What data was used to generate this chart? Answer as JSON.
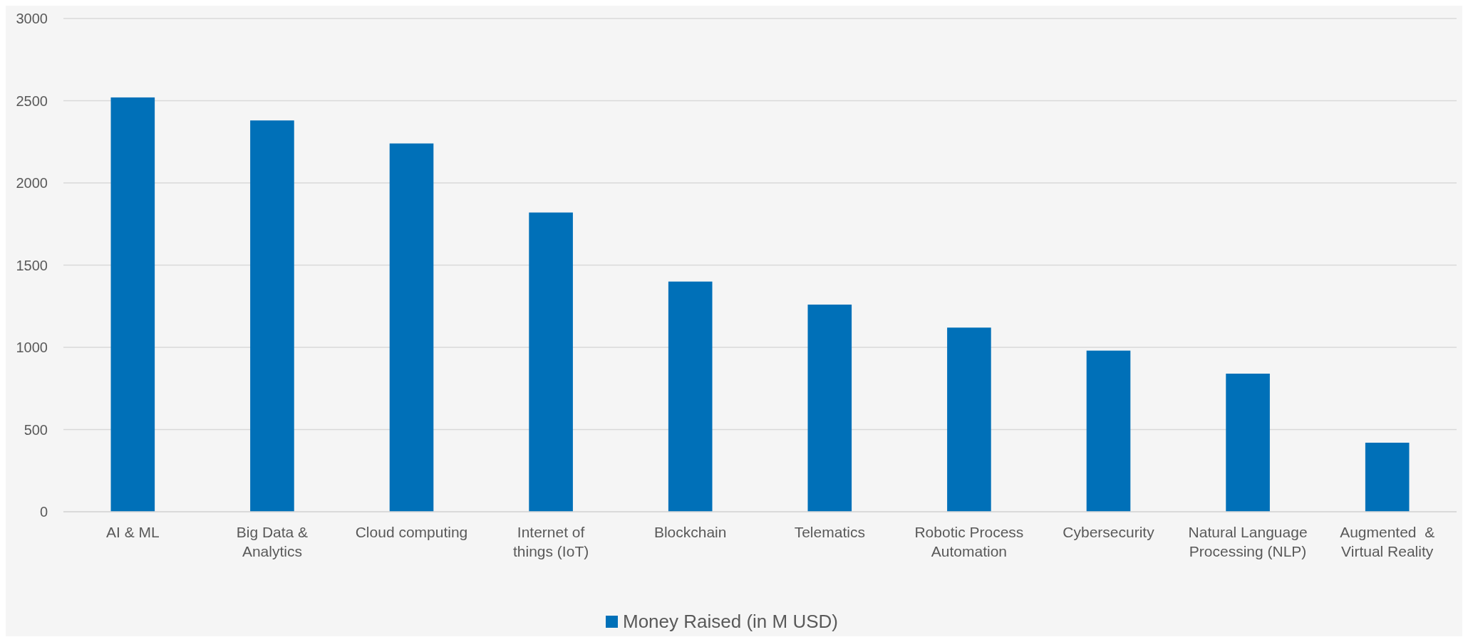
{
  "chart_data": {
    "type": "bar",
    "categories": [
      "AI & ML",
      "Big Data & Analytics",
      "Cloud computing",
      "Internet of things (IoT)",
      "Blockchain",
      "Telematics",
      "Robotic Process Automation",
      "Cybersecurity",
      "Natural Language Processing (NLP)",
      "Augmented  & Virtual Reality"
    ],
    "series": [
      {
        "name": "Money Raised (in M USD)",
        "color": "#0070b8",
        "values": [
          2520,
          2380,
          2240,
          1820,
          1400,
          1260,
          1120,
          980,
          840,
          420
        ]
      }
    ],
    "ylim": [
      0,
      3000
    ],
    "yticks": [
      0,
      500,
      1000,
      1500,
      2000,
      2500,
      3000
    ],
    "grid": "y",
    "legend": "bottom"
  }
}
